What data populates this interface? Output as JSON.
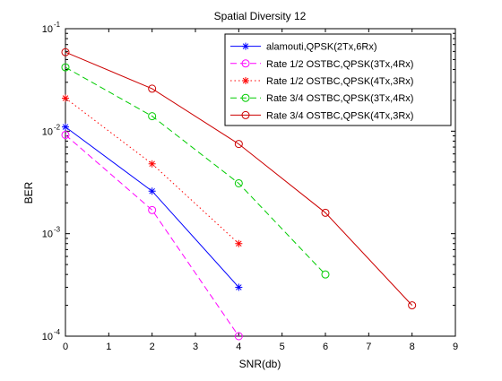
{
  "chart_data": {
    "type": "line",
    "title": "Spatial Diversity 12",
    "xlabel": "SNR(db)",
    "ylabel": "BER",
    "xlim": [
      0,
      9
    ],
    "ylim": [
      0.0001,
      0.1
    ],
    "yscale": "log",
    "x_ticks": [
      "0",
      "1",
      "2",
      "3",
      "4",
      "5",
      "6",
      "7",
      "8",
      "9"
    ],
    "y_ticks": [
      {
        "value": 0.1,
        "base": "10",
        "exp": "-1"
      },
      {
        "value": 0.01,
        "base": "10",
        "exp": "-2"
      },
      {
        "value": 0.001,
        "base": "10",
        "exp": "-3"
      },
      {
        "value": 0.0001,
        "base": "10",
        "exp": "-4"
      }
    ],
    "grid": false,
    "legend_position": "top-right",
    "series": [
      {
        "name": "alamouti,QPSK(2Tx,6Rx)",
        "color": "#0000ff",
        "dash": "solid",
        "marker": "asterisk",
        "x": [
          0,
          2,
          4
        ],
        "y": [
          0.011,
          0.0026,
          0.0003
        ]
      },
      {
        "name": "Rate 1/2 OSTBC,QPSK(3Tx,4Rx)",
        "color": "#ff00ff",
        "dash": "dashed",
        "marker": "circle",
        "x": [
          0,
          2,
          4
        ],
        "y": [
          0.0092,
          0.0017,
          0.0001
        ]
      },
      {
        "name": "Rate 1/2 OSTBC,QPSK(4Tx,3Rx)",
        "color": "#ff0000",
        "dash": "dotted",
        "marker": "asterisk",
        "x": [
          0,
          2,
          4
        ],
        "y": [
          0.021,
          0.0048,
          0.0008
        ]
      },
      {
        "name": "Rate 3/4 OSTBC,QPSK(3Tx,4Rx)",
        "color": "#00cc00",
        "dash": "dashed",
        "marker": "circle",
        "x": [
          0,
          2,
          4,
          6
        ],
        "y": [
          0.042,
          0.014,
          0.0031,
          0.0004
        ]
      },
      {
        "name": "Rate 3/4 OSTBC,QPSK(4Tx,3Rx)",
        "color": "#cc0000",
        "dash": "solid",
        "marker": "circle",
        "x": [
          0,
          2,
          4,
          6,
          8
        ],
        "y": [
          0.059,
          0.026,
          0.0075,
          0.0016,
          0.0002
        ]
      }
    ]
  }
}
